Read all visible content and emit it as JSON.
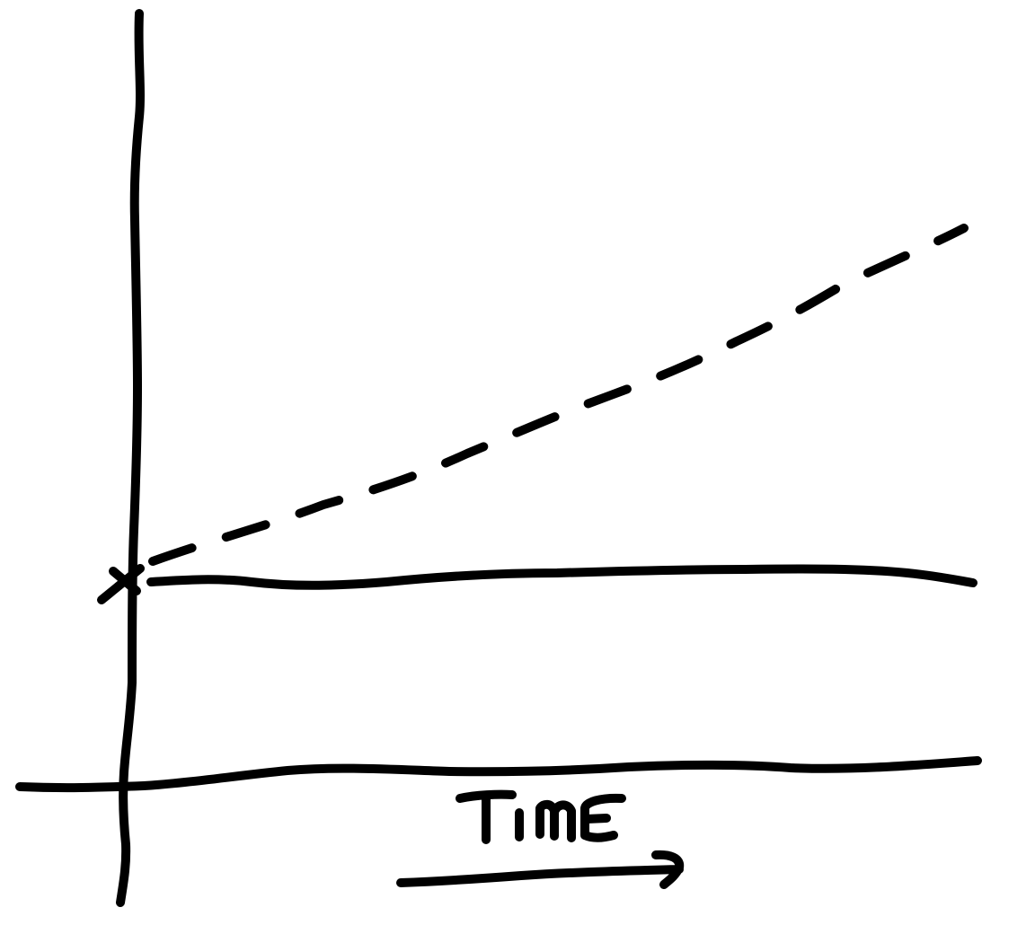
{
  "diagram": {
    "axis_label": "Time",
    "colors": {
      "ink": "#000000",
      "background": "#ffffff"
    },
    "elements": [
      "vertical-axis",
      "horizontal-axis",
      "starting-point-mark",
      "flat-solid-line",
      "rising-dashed-line",
      "time-arrow"
    ]
  }
}
